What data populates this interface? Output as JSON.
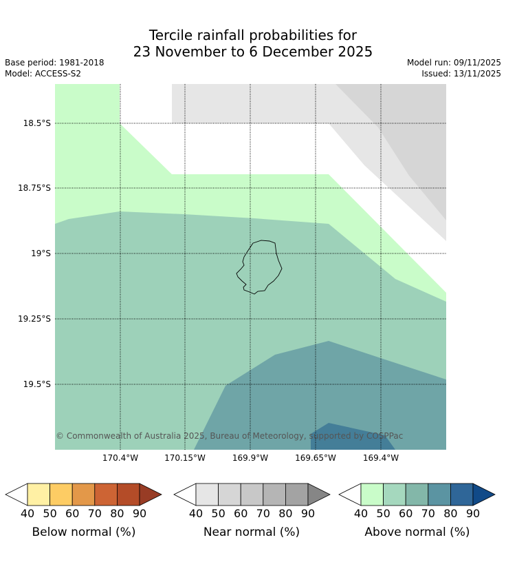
{
  "header": {
    "title_line1": "Tercile rainfall probabilities for",
    "title_line2": "23 November to 6 December 2025",
    "base_period": "Base period: 1981-2018",
    "model": "Model: ACCESS-S2",
    "model_run": "Model run: 09/11/2025",
    "issued": "Issued: 13/11/2025"
  },
  "map": {
    "copyright": "© Commonwealth of Australia 2025, Bureau of Meteorology, supported by COSPPac",
    "lat_labels": [
      "18.5°S",
      "18.75°S",
      "19°S",
      "19.25°S",
      "19.5°S"
    ],
    "lon_labels": [
      "170.4°W",
      "170.15°W",
      "169.9°W",
      "169.65°W",
      "169.4°W"
    ],
    "regions": [
      {
        "name": "near-normal-40",
        "color": "#e6e6e6"
      },
      {
        "name": "near-normal-50",
        "color": "#d6d6d6"
      },
      {
        "name": "above-normal-40",
        "color": "#c9fcc9"
      },
      {
        "name": "above-normal-50",
        "color": "#9dd1b9"
      },
      {
        "name": "above-normal-60",
        "color": "#6fa5a7"
      },
      {
        "name": "above-normal-70",
        "color": "#447e98"
      }
    ]
  },
  "legends": [
    {
      "name": "below",
      "label": "Below normal (%)",
      "ticks": [
        "40",
        "50",
        "60",
        "70",
        "80",
        "90"
      ],
      "colors": [
        "#fff0a4",
        "#fdcc64",
        "#e39849",
        "#cd6434",
        "#b44c28"
      ],
      "arrow_color": "#983c25"
    },
    {
      "name": "near",
      "label": "Near normal (%)",
      "ticks": [
        "40",
        "50",
        "60",
        "70",
        "80",
        "90"
      ],
      "colors": [
        "#e6e6e6",
        "#d6d6d6",
        "#c8c8c8",
        "#b5b5b5",
        "#a3a3a3"
      ],
      "arrow_color": "#868686"
    },
    {
      "name": "above",
      "label": "Above normal (%)",
      "ticks": [
        "40",
        "50",
        "60",
        "70",
        "80",
        "90"
      ],
      "colors": [
        "#c9fcc9",
        "#a5d8be",
        "#83b7a9",
        "#5b94a2",
        "#2f6698"
      ],
      "arrow_color": "#114a88"
    }
  ]
}
